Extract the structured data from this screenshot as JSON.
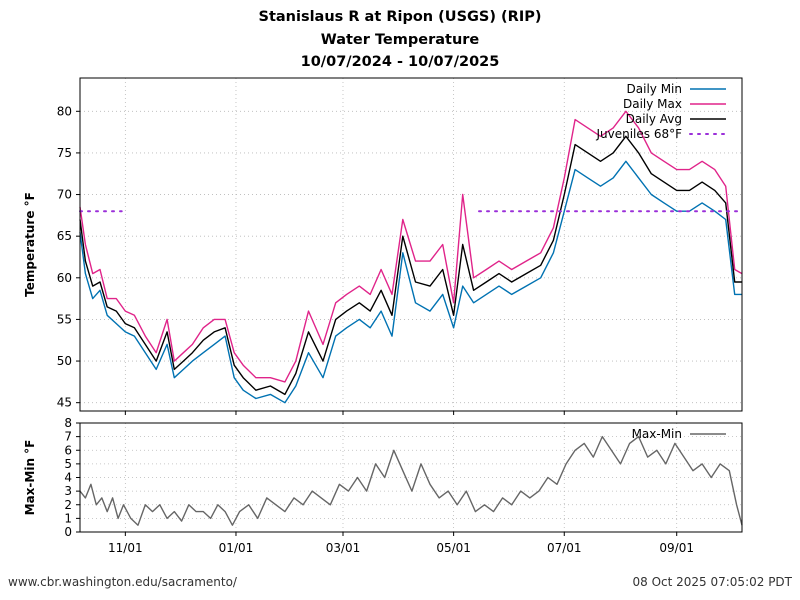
{
  "title_lines": [
    "Stanislaus R at Ripon (USGS) (RIP)",
    "Water Temperature",
    "10/07/2024 - 10/07/2025"
  ],
  "footer": {
    "left": "www.cbr.washington.edu/sacramento/",
    "right": "08 Oct 2025 07:05:02 PDT"
  },
  "chart_data": [
    {
      "type": "line",
      "ylabel": "Temperature °F",
      "ylim": [
        44,
        84
      ],
      "yticks": [
        45,
        50,
        55,
        60,
        65,
        70,
        75,
        80
      ],
      "xlim": [
        "2024-10-07",
        "2025-10-07"
      ],
      "xticks": [
        {
          "date": "2024-11-01",
          "label": "11/01"
        },
        {
          "date": "2025-01-01",
          "label": "01/01"
        },
        {
          "date": "2025-03-01",
          "label": "03/01"
        },
        {
          "date": "2025-05-01",
          "label": "05/01"
        },
        {
          "date": "2025-07-01",
          "label": "07/01"
        },
        {
          "date": "2025-09-01",
          "label": "09/01"
        }
      ],
      "grid": true,
      "legend_position": "top-right",
      "series": [
        {
          "name": "Daily Min",
          "color": "#0072b2",
          "x": [
            "2024-10-07",
            "2024-10-10",
            "2024-10-14",
            "2024-10-18",
            "2024-10-22",
            "2024-10-27",
            "2024-11-01",
            "2024-11-06",
            "2024-11-12",
            "2024-11-18",
            "2024-11-24",
            "2024-11-28",
            "2024-12-03",
            "2024-12-08",
            "2024-12-14",
            "2024-12-20",
            "2024-12-26",
            "2024-12-31",
            "2025-01-05",
            "2025-01-12",
            "2025-01-20",
            "2025-01-28",
            "2025-02-03",
            "2025-02-10",
            "2025-02-18",
            "2025-02-25",
            "2025-03-03",
            "2025-03-10",
            "2025-03-16",
            "2025-03-22",
            "2025-03-28",
            "2025-04-03",
            "2025-04-10",
            "2025-04-18",
            "2025-04-25",
            "2025-05-01",
            "2025-05-06",
            "2025-05-12",
            "2025-05-19",
            "2025-05-26",
            "2025-06-02",
            "2025-06-10",
            "2025-06-18",
            "2025-06-25",
            "2025-07-01",
            "2025-07-07",
            "2025-07-14",
            "2025-07-21",
            "2025-07-28",
            "2025-08-04",
            "2025-08-11",
            "2025-08-18",
            "2025-08-25",
            "2025-09-01",
            "2025-09-08",
            "2025-09-15",
            "2025-09-22",
            "2025-09-28",
            "2025-10-03",
            "2025-10-07"
          ],
          "values": [
            65.5,
            60.5,
            57.5,
            58.5,
            55.5,
            54.5,
            53.5,
            53,
            51,
            49,
            52,
            48,
            49,
            50,
            51,
            52,
            53,
            48,
            46.5,
            45.5,
            46,
            45,
            47,
            51,
            48,
            53,
            54,
            55,
            54,
            56,
            53,
            63,
            57,
            56,
            58,
            54,
            59,
            57,
            58,
            59,
            58,
            59,
            60,
            63,
            68,
            73,
            72,
            71,
            72,
            74,
            72,
            70,
            69,
            68,
            68,
            69,
            68,
            67,
            58,
            58
          ]
        },
        {
          "name": "Daily Max",
          "color": "#e0248a",
          "x": [
            "2024-10-07",
            "2024-10-10",
            "2024-10-14",
            "2024-10-18",
            "2024-10-22",
            "2024-10-27",
            "2024-11-01",
            "2024-11-06",
            "2024-11-12",
            "2024-11-18",
            "2024-11-24",
            "2024-11-28",
            "2024-12-03",
            "2024-12-08",
            "2024-12-14",
            "2024-12-20",
            "2024-12-26",
            "2024-12-31",
            "2025-01-05",
            "2025-01-12",
            "2025-01-20",
            "2025-01-28",
            "2025-02-03",
            "2025-02-10",
            "2025-02-18",
            "2025-02-25",
            "2025-03-03",
            "2025-03-10",
            "2025-03-16",
            "2025-03-22",
            "2025-03-28",
            "2025-04-03",
            "2025-04-10",
            "2025-04-18",
            "2025-04-25",
            "2025-05-01",
            "2025-05-06",
            "2025-05-12",
            "2025-05-19",
            "2025-05-26",
            "2025-06-02",
            "2025-06-10",
            "2025-06-18",
            "2025-06-25",
            "2025-07-01",
            "2025-07-07",
            "2025-07-14",
            "2025-07-21",
            "2025-07-28",
            "2025-08-04",
            "2025-08-11",
            "2025-08-18",
            "2025-08-25",
            "2025-09-01",
            "2025-09-08",
            "2025-09-15",
            "2025-09-22",
            "2025-09-28",
            "2025-10-03",
            "2025-10-07"
          ],
          "values": [
            68.5,
            64,
            60.5,
            61,
            57.5,
            57.5,
            56,
            55.5,
            53,
            51,
            55,
            50,
            51,
            52,
            54,
            55,
            55,
            51,
            49.5,
            48,
            48,
            47.5,
            50,
            56,
            52,
            57,
            58,
            59,
            58,
            61,
            58,
            67,
            62,
            62,
            64,
            57,
            70,
            60,
            61,
            62,
            61,
            62,
            63,
            66,
            72,
            79,
            78,
            77,
            78,
            80,
            78,
            75,
            74,
            73,
            73,
            74,
            73,
            71,
            61,
            60.5
          ]
        },
        {
          "name": "Daily Avg",
          "color": "#000000",
          "x": [
            "2024-10-07",
            "2024-10-10",
            "2024-10-14",
            "2024-10-18",
            "2024-10-22",
            "2024-10-27",
            "2024-11-01",
            "2024-11-06",
            "2024-11-12",
            "2024-11-18",
            "2024-11-24",
            "2024-11-28",
            "2024-12-03",
            "2024-12-08",
            "2024-12-14",
            "2024-12-20",
            "2024-12-26",
            "2024-12-31",
            "2025-01-05",
            "2025-01-12",
            "2025-01-20",
            "2025-01-28",
            "2025-02-03",
            "2025-02-10",
            "2025-02-18",
            "2025-02-25",
            "2025-03-03",
            "2025-03-10",
            "2025-03-16",
            "2025-03-22",
            "2025-03-28",
            "2025-04-03",
            "2025-04-10",
            "2025-04-18",
            "2025-04-25",
            "2025-05-01",
            "2025-05-06",
            "2025-05-12",
            "2025-05-19",
            "2025-05-26",
            "2025-06-02",
            "2025-06-10",
            "2025-06-18",
            "2025-06-25",
            "2025-07-01",
            "2025-07-07",
            "2025-07-14",
            "2025-07-21",
            "2025-07-28",
            "2025-08-04",
            "2025-08-11",
            "2025-08-18",
            "2025-08-25",
            "2025-09-01",
            "2025-09-08",
            "2025-09-15",
            "2025-09-22",
            "2025-09-28",
            "2025-10-03",
            "2025-10-07"
          ],
          "values": [
            67,
            62,
            59,
            59.5,
            56.5,
            56,
            54.5,
            54,
            52,
            50,
            53.5,
            49,
            50,
            51,
            52.5,
            53.5,
            54,
            49.5,
            48,
            46.5,
            47,
            46,
            48.5,
            53.5,
            50,
            55,
            56,
            57,
            56,
            58.5,
            55.5,
            65,
            59.5,
            59,
            61,
            55.5,
            64,
            58.5,
            59.5,
            60.5,
            59.5,
            60.5,
            61.5,
            64.5,
            70,
            76,
            75,
            74,
            75,
            77,
            75,
            72.5,
            71.5,
            70.5,
            70.5,
            71.5,
            70.5,
            69,
            59.5,
            59.5
          ]
        },
        {
          "name": "Juveniles 68°F",
          "color": "#9b30d9",
          "style": "dotted",
          "segments": [
            {
              "x": [
                "2024-10-07",
                "2024-10-30"
              ],
              "y": [
                68,
                68
              ]
            },
            {
              "x": [
                "2025-05-15",
                "2025-10-07"
              ],
              "y": [
                68,
                68
              ]
            }
          ]
        }
      ]
    },
    {
      "type": "line",
      "ylabel": "Max-Min °F",
      "ylim": [
        0,
        8
      ],
      "yticks": [
        0,
        1,
        2,
        3,
        4,
        5,
        6,
        7,
        8
      ],
      "grid": true,
      "legend_position": "top-right",
      "series": [
        {
          "name": "Max-Min",
          "color": "#666666",
          "x": [
            "2024-10-07",
            "2024-10-10",
            "2024-10-13",
            "2024-10-16",
            "2024-10-19",
            "2024-10-22",
            "2024-10-25",
            "2024-10-28",
            "2024-10-31",
            "2024-11-04",
            "2024-11-08",
            "2024-11-12",
            "2024-11-16",
            "2024-11-20",
            "2024-11-24",
            "2024-11-28",
            "2024-12-02",
            "2024-12-06",
            "2024-12-10",
            "2024-12-14",
            "2024-12-18",
            "2024-12-22",
            "2024-12-26",
            "2024-12-30",
            "2025-01-03",
            "2025-01-08",
            "2025-01-13",
            "2025-01-18",
            "2025-01-23",
            "2025-01-28",
            "2025-02-02",
            "2025-02-07",
            "2025-02-12",
            "2025-02-17",
            "2025-02-22",
            "2025-02-27",
            "2025-03-04",
            "2025-03-09",
            "2025-03-14",
            "2025-03-19",
            "2025-03-24",
            "2025-03-29",
            "2025-04-03",
            "2025-04-08",
            "2025-04-13",
            "2025-04-18",
            "2025-04-23",
            "2025-04-28",
            "2025-05-03",
            "2025-05-08",
            "2025-05-13",
            "2025-05-18",
            "2025-05-23",
            "2025-05-28",
            "2025-06-02",
            "2025-06-07",
            "2025-06-12",
            "2025-06-17",
            "2025-06-22",
            "2025-06-27",
            "2025-07-02",
            "2025-07-07",
            "2025-07-12",
            "2025-07-17",
            "2025-07-22",
            "2025-07-27",
            "2025-08-01",
            "2025-08-06",
            "2025-08-11",
            "2025-08-16",
            "2025-08-21",
            "2025-08-26",
            "2025-08-31",
            "2025-09-05",
            "2025-09-10",
            "2025-09-15",
            "2025-09-20",
            "2025-09-25",
            "2025-09-30",
            "2025-10-04",
            "2025-10-07"
          ],
          "values": [
            3,
            2.5,
            3.5,
            2,
            2.5,
            1.5,
            2.5,
            1,
            2,
            1,
            0.5,
            2,
            1.5,
            2,
            1,
            1.5,
            0.8,
            2,
            1.5,
            1.5,
            1,
            2,
            1.5,
            0.5,
            1.5,
            2,
            1,
            2.5,
            2,
            1.5,
            2.5,
            2,
            3,
            2.5,
            2,
            3.5,
            3,
            4,
            3,
            5,
            4,
            6,
            4.5,
            3,
            5,
            3.5,
            2.5,
            3,
            2,
            3,
            1.5,
            2,
            1.5,
            2.5,
            2,
            3,
            2.5,
            3,
            4,
            3.5,
            5,
            6,
            6.5,
            5.5,
            7,
            6,
            5,
            6.5,
            7,
            5.5,
            6,
            5,
            6.5,
            5.5,
            4.5,
            5,
            4,
            5,
            4.5,
            2,
            0.5
          ]
        }
      ]
    }
  ]
}
